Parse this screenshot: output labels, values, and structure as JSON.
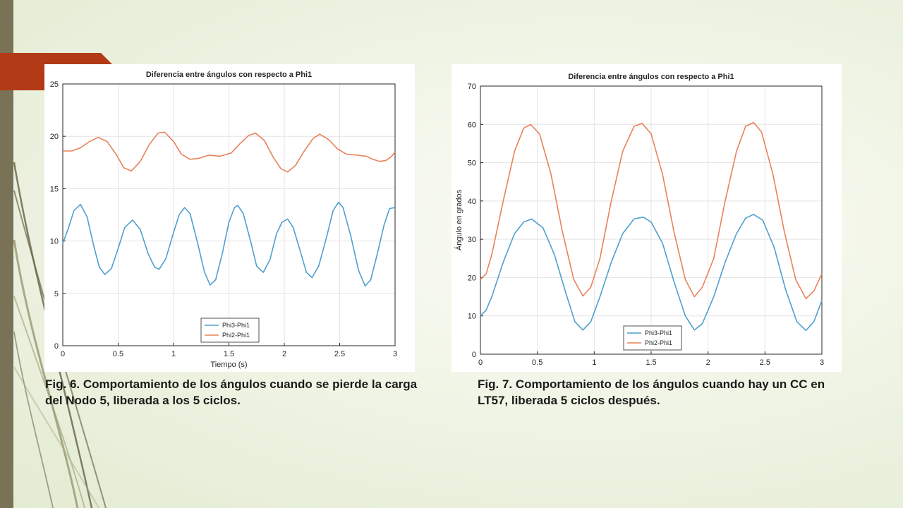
{
  "theme": {
    "left_bar_color": "#7a7257",
    "accent_tab_color": "#b23a16",
    "series_colors": [
      "#4f9fcf",
      "#e8825a"
    ]
  },
  "slide": {
    "caption1": "Fig. 6. Comportamiento de los ángulos cuando se pierde la carga del Nodo 5, liberada a los 5 ciclos.",
    "caption2": "Fig. 7. Comportamiento de los ángulos cuando hay un CC en LT57, liberada 5 ciclos después."
  },
  "chart_data": [
    {
      "type": "line",
      "title": "Diferencia entre ángulos con respecto a Phi1",
      "xlabel": "Tiempo (s)",
      "ylabel": "",
      "xlim": [
        0,
        3
      ],
      "ylim": [
        0,
        25
      ],
      "xticks": [
        0,
        0.5,
        1,
        1.5,
        2,
        2.5,
        3
      ],
      "xtick_labels": [
        "0",
        "0.5",
        "1",
        "1.5",
        "2",
        "2.5",
        "3"
      ],
      "yticks": [
        0,
        5,
        10,
        15,
        20,
        25
      ],
      "ytick_labels": [
        "0",
        "5",
        "10",
        "15",
        "20",
        "25"
      ],
      "grid": true,
      "legend": "bottom-center",
      "series": [
        {
          "name": "Phi3-Phi1",
          "color": "#4f9fcf",
          "points": [
            [
              0,
              9.8
            ],
            [
              0.05,
              11.2
            ],
            [
              0.1,
              12.9
            ],
            [
              0.16,
              13.5
            ],
            [
              0.22,
              12.3
            ],
            [
              0.28,
              9.5
            ],
            [
              0.33,
              7.5
            ],
            [
              0.38,
              6.8
            ],
            [
              0.44,
              7.4
            ],
            [
              0.5,
              9.3
            ],
            [
              0.56,
              11.3
            ],
            [
              0.63,
              12.0
            ],
            [
              0.7,
              11.1
            ],
            [
              0.77,
              8.8
            ],
            [
              0.83,
              7.5
            ],
            [
              0.87,
              7.3
            ],
            [
              0.93,
              8.3
            ],
            [
              1.0,
              10.8
            ],
            [
              1.05,
              12.5
            ],
            [
              1.1,
              13.2
            ],
            [
              1.15,
              12.6
            ],
            [
              1.22,
              9.7
            ],
            [
              1.28,
              7.0
            ],
            [
              1.33,
              5.8
            ],
            [
              1.38,
              6.3
            ],
            [
              1.44,
              8.8
            ],
            [
              1.5,
              11.8
            ],
            [
              1.55,
              13.2
            ],
            [
              1.58,
              13.4
            ],
            [
              1.63,
              12.6
            ],
            [
              1.7,
              9.8
            ],
            [
              1.75,
              7.6
            ],
            [
              1.81,
              7.0
            ],
            [
              1.87,
              8.2
            ],
            [
              1.93,
              10.7
            ],
            [
              1.98,
              11.8
            ],
            [
              2.03,
              12.1
            ],
            [
              2.08,
              11.3
            ],
            [
              2.15,
              8.8
            ],
            [
              2.2,
              7.0
            ],
            [
              2.25,
              6.5
            ],
            [
              2.31,
              7.6
            ],
            [
              2.38,
              10.3
            ],
            [
              2.44,
              12.9
            ],
            [
              2.49,
              13.7
            ],
            [
              2.53,
              13.2
            ],
            [
              2.6,
              10.5
            ],
            [
              2.67,
              7.2
            ],
            [
              2.73,
              5.7
            ],
            [
              2.78,
              6.3
            ],
            [
              2.84,
              8.8
            ],
            [
              2.9,
              11.5
            ],
            [
              2.95,
              13.1
            ],
            [
              3.0,
              13.2
            ]
          ]
        },
        {
          "name": "Phi2-Phi1",
          "color": "#e8825a",
          "points": [
            [
              0,
              18.6
            ],
            [
              0.08,
              18.6
            ],
            [
              0.16,
              18.9
            ],
            [
              0.24,
              19.5
            ],
            [
              0.32,
              19.9
            ],
            [
              0.4,
              19.5
            ],
            [
              0.48,
              18.3
            ],
            [
              0.55,
              17.0
            ],
            [
              0.62,
              16.7
            ],
            [
              0.7,
              17.6
            ],
            [
              0.78,
              19.2
            ],
            [
              0.86,
              20.3
            ],
            [
              0.92,
              20.4
            ],
            [
              1.0,
              19.5
            ],
            [
              1.07,
              18.3
            ],
            [
              1.15,
              17.8
            ],
            [
              1.23,
              17.9
            ],
            [
              1.32,
              18.2
            ],
            [
              1.42,
              18.1
            ],
            [
              1.52,
              18.4
            ],
            [
              1.6,
              19.3
            ],
            [
              1.68,
              20.1
            ],
            [
              1.74,
              20.3
            ],
            [
              1.82,
              19.6
            ],
            [
              1.9,
              18.0
            ],
            [
              1.97,
              16.9
            ],
            [
              2.03,
              16.6
            ],
            [
              2.1,
              17.2
            ],
            [
              2.18,
              18.6
            ],
            [
              2.26,
              19.8
            ],
            [
              2.32,
              20.2
            ],
            [
              2.4,
              19.7
            ],
            [
              2.48,
              18.8
            ],
            [
              2.56,
              18.3
            ],
            [
              2.66,
              18.2
            ],
            [
              2.74,
              18.1
            ],
            [
              2.8,
              17.8
            ],
            [
              2.86,
              17.6
            ],
            [
              2.92,
              17.7
            ],
            [
              2.97,
              18.1
            ],
            [
              3.0,
              18.5
            ]
          ]
        }
      ]
    },
    {
      "type": "line",
      "title": "Diferencia entre ángulos con respecto a Phi1",
      "xlabel": "",
      "ylabel": "Ángulo en grados",
      "xlim": [
        0,
        3
      ],
      "ylim": [
        0,
        70
      ],
      "xticks": [
        0,
        0.5,
        1,
        1.5,
        2,
        2.5,
        3
      ],
      "xtick_labels": [
        "0",
        "0.5",
        "1",
        "1.5",
        "2",
        "2.5",
        "3"
      ],
      "yticks": [
        0,
        10,
        20,
        30,
        40,
        50,
        60,
        70
      ],
      "ytick_labels": [
        "0",
        "10",
        "20",
        "30",
        "40",
        "50",
        "60",
        "70"
      ],
      "grid": true,
      "legend": "bottom-left",
      "series": [
        {
          "name": "Phi3-Phi1",
          "color": "#4f9fcf",
          "points": [
            [
              0,
              10
            ],
            [
              0.05,
              11.5
            ],
            [
              0.1,
              15
            ],
            [
              0.2,
              24
            ],
            [
              0.3,
              31.5
            ],
            [
              0.38,
              34.5
            ],
            [
              0.45,
              35.3
            ],
            [
              0.55,
              33
            ],
            [
              0.65,
              26
            ],
            [
              0.75,
              16
            ],
            [
              0.83,
              8.5
            ],
            [
              0.9,
              6.3
            ],
            [
              0.97,
              8.5
            ],
            [
              1.05,
              15
            ],
            [
              1.15,
              24
            ],
            [
              1.25,
              31.5
            ],
            [
              1.35,
              35.3
            ],
            [
              1.43,
              35.8
            ],
            [
              1.5,
              34.5
            ],
            [
              1.6,
              29
            ],
            [
              1.7,
              19
            ],
            [
              1.8,
              10
            ],
            [
              1.88,
              6.3
            ],
            [
              1.95,
              8
            ],
            [
              2.05,
              15
            ],
            [
              2.15,
              24
            ],
            [
              2.25,
              31.5
            ],
            [
              2.33,
              35.5
            ],
            [
              2.4,
              36.5
            ],
            [
              2.48,
              35
            ],
            [
              2.58,
              28
            ],
            [
              2.68,
              17
            ],
            [
              2.78,
              8.5
            ],
            [
              2.86,
              6.2
            ],
            [
              2.93,
              8.5
            ],
            [
              3.0,
              14
            ]
          ]
        },
        {
          "name": "Phi2-Phi1",
          "color": "#e8825a",
          "points": [
            [
              0,
              19.5
            ],
            [
              0.05,
              21
            ],
            [
              0.1,
              26
            ],
            [
              0.2,
              40
            ],
            [
              0.3,
              53
            ],
            [
              0.38,
              59
            ],
            [
              0.44,
              60
            ],
            [
              0.52,
              57.5
            ],
            [
              0.62,
              47
            ],
            [
              0.72,
              32
            ],
            [
              0.82,
              19.5
            ],
            [
              0.9,
              15.2
            ],
            [
              0.97,
              17.5
            ],
            [
              1.05,
              25
            ],
            [
              1.15,
              40
            ],
            [
              1.25,
              53
            ],
            [
              1.35,
              59.5
            ],
            [
              1.42,
              60.3
            ],
            [
              1.5,
              57.5
            ],
            [
              1.6,
              47
            ],
            [
              1.7,
              32
            ],
            [
              1.8,
              19.5
            ],
            [
              1.88,
              15
            ],
            [
              1.95,
              17.5
            ],
            [
              2.05,
              25
            ],
            [
              2.15,
              40
            ],
            [
              2.25,
              53
            ],
            [
              2.33,
              59.5
            ],
            [
              2.4,
              60.5
            ],
            [
              2.47,
              58
            ],
            [
              2.57,
              47
            ],
            [
              2.67,
              32
            ],
            [
              2.77,
              19.5
            ],
            [
              2.86,
              14.5
            ],
            [
              2.93,
              16.5
            ],
            [
              3.0,
              21
            ]
          ]
        }
      ]
    }
  ]
}
